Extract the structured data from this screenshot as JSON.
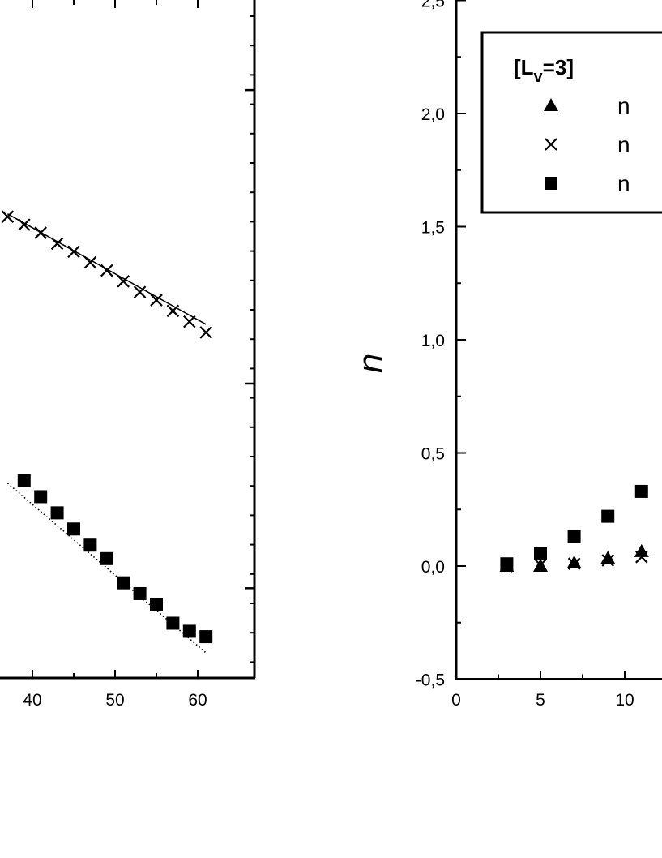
{
  "chart_data": [
    {
      "type": "scatter",
      "title": "",
      "xlabel": "",
      "ylabel": "",
      "xlim": [
        -1,
        65
      ],
      "x_ticks": [
        40,
        50,
        60
      ],
      "grid": false,
      "series": [
        {
          "marker": "x",
          "x": [
            37,
            39,
            41,
            43,
            45,
            47,
            49,
            51,
            53,
            55,
            57,
            59,
            61
          ],
          "y": [
            0.62,
            0.59,
            0.56,
            0.52,
            0.49,
            0.45,
            0.42,
            0.38,
            0.34,
            0.31,
            0.27,
            0.23,
            0.19
          ],
          "fit": {
            "style": "solid",
            "from": [
              37,
              0.63
            ],
            "to": [
              61,
              0.22
            ]
          }
        },
        {
          "marker": "square",
          "x": [
            39,
            41,
            43,
            45,
            47,
            49,
            51,
            53,
            55,
            57,
            59,
            61
          ],
          "y": [
            -0.36,
            -0.42,
            -0.48,
            -0.54,
            -0.6,
            -0.65,
            -0.74,
            -0.78,
            -0.82,
            -0.89,
            -0.92,
            -0.94
          ],
          "fit": {
            "style": "dotted",
            "from": [
              37,
              -0.37
            ],
            "to": [
              61,
              -1.0
            ]
          }
        }
      ]
    },
    {
      "type": "scatter",
      "title": "",
      "xlabel": "",
      "ylabel": "n",
      "xlim": [
        0,
        25
      ],
      "ylim": [
        -0.5,
        2.5
      ],
      "x_ticks": [
        "0",
        "5",
        "10"
      ],
      "y_ticks": [
        "-0,5",
        "0,0",
        "0,5",
        "1,0",
        "1,5",
        "2,0",
        "2,5"
      ],
      "grid": false,
      "legend": {
        "title": "[L",
        "title_sub": "v",
        "title_tail": "=3]",
        "placement": "top-right",
        "entries": [
          "n",
          "n",
          "n"
        ]
      },
      "series": [
        {
          "marker": "triangle",
          "x": [
            3,
            5,
            7,
            9,
            11
          ],
          "y": [
            0.0,
            0.0,
            0.015,
            0.035,
            0.065
          ]
        },
        {
          "marker": "x",
          "x": [
            3,
            5,
            7,
            9,
            11
          ],
          "y": [
            0.0,
            0.005,
            0.01,
            0.025,
            0.04
          ]
        },
        {
          "marker": "square",
          "x": [
            3,
            5,
            7,
            9,
            11
          ],
          "y": [
            0.01,
            0.055,
            0.13,
            0.22,
            0.33
          ]
        }
      ]
    }
  ]
}
